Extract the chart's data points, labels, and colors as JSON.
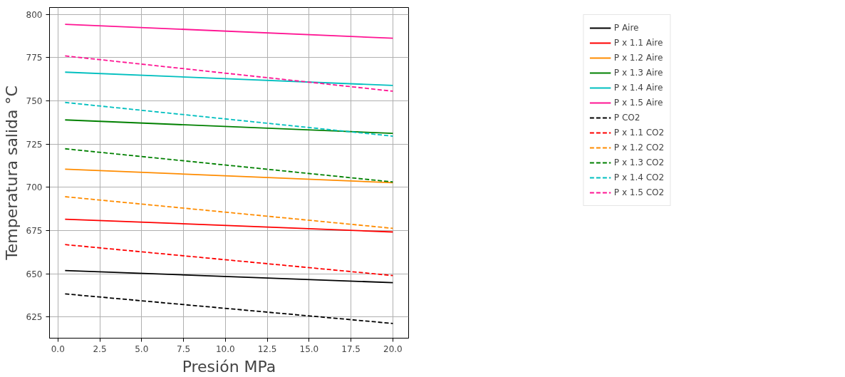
{
  "chart_data": {
    "type": "line",
    "xlabel": "Presión MPa",
    "ylabel": "Temperatura salida °C",
    "x": [
      0.43,
      20.0
    ],
    "series": [
      {
        "name": "P Aire",
        "color": "#000000",
        "line_style": "solid",
        "values": [
          651.9,
          644.9
        ]
      },
      {
        "name": "P x 1.1 Aire",
        "color": "#ff0000",
        "line_style": "solid",
        "values": [
          681.6,
          674.2
        ]
      },
      {
        "name": "P x 1.2 Aire",
        "color": "#ff8c00",
        "line_style": "solid",
        "values": [
          710.5,
          702.7
        ]
      },
      {
        "name": "P x 1.3 Aire",
        "color": "#008000",
        "line_style": "solid",
        "values": [
          739.0,
          731.2
        ]
      },
      {
        "name": "P x 1.4 Aire",
        "color": "#00bfbf",
        "line_style": "solid",
        "values": [
          766.6,
          758.9
        ]
      },
      {
        "name": "P x 1.5 Aire",
        "color": "#ff1493",
        "line_style": "solid",
        "values": [
          794.3,
          786.2
        ]
      },
      {
        "name": "P CO2",
        "color": "#000000",
        "line_style": "dashed",
        "values": [
          638.4,
          621.3
        ]
      },
      {
        "name": "P x 1.1 CO2",
        "color": "#ff0000",
        "line_style": "dashed",
        "values": [
          666.9,
          649.0
        ]
      },
      {
        "name": "P x 1.2 CO2",
        "color": "#ff8c00",
        "line_style": "dashed",
        "values": [
          694.6,
          676.3
        ]
      },
      {
        "name": "P x 1.3 CO2",
        "color": "#008000",
        "line_style": "dashed",
        "values": [
          722.3,
          703.1
        ]
      },
      {
        "name": "P x 1.4 CO2",
        "color": "#00bfbf",
        "line_style": "dashed",
        "values": [
          749.1,
          729.6
        ]
      },
      {
        "name": "P x 1.5 CO2",
        "color": "#ff1493",
        "line_style": "dashed",
        "values": [
          776.0,
          755.6
        ]
      }
    ],
    "xlim": [
      -0.5,
      20.94
    ],
    "ylim": [
      612.8,
      804
    ],
    "xticks": [
      {
        "value": 0,
        "label": "0.0"
      },
      {
        "value": 2.5,
        "label": "2.5"
      },
      {
        "value": 5,
        "label": "5.0"
      },
      {
        "value": 7.5,
        "label": "7.5"
      },
      {
        "value": 10,
        "label": "10.0"
      },
      {
        "value": 12.5,
        "label": "12.5"
      },
      {
        "value": 15,
        "label": "15.0"
      },
      {
        "value": 17.5,
        "label": "17.5"
      },
      {
        "value": 20,
        "label": "20.0"
      }
    ],
    "yticks": [
      625,
      650,
      675,
      700,
      725,
      750,
      775,
      800
    ],
    "grid": true,
    "legend": "top right",
    "marker": "none"
  }
}
